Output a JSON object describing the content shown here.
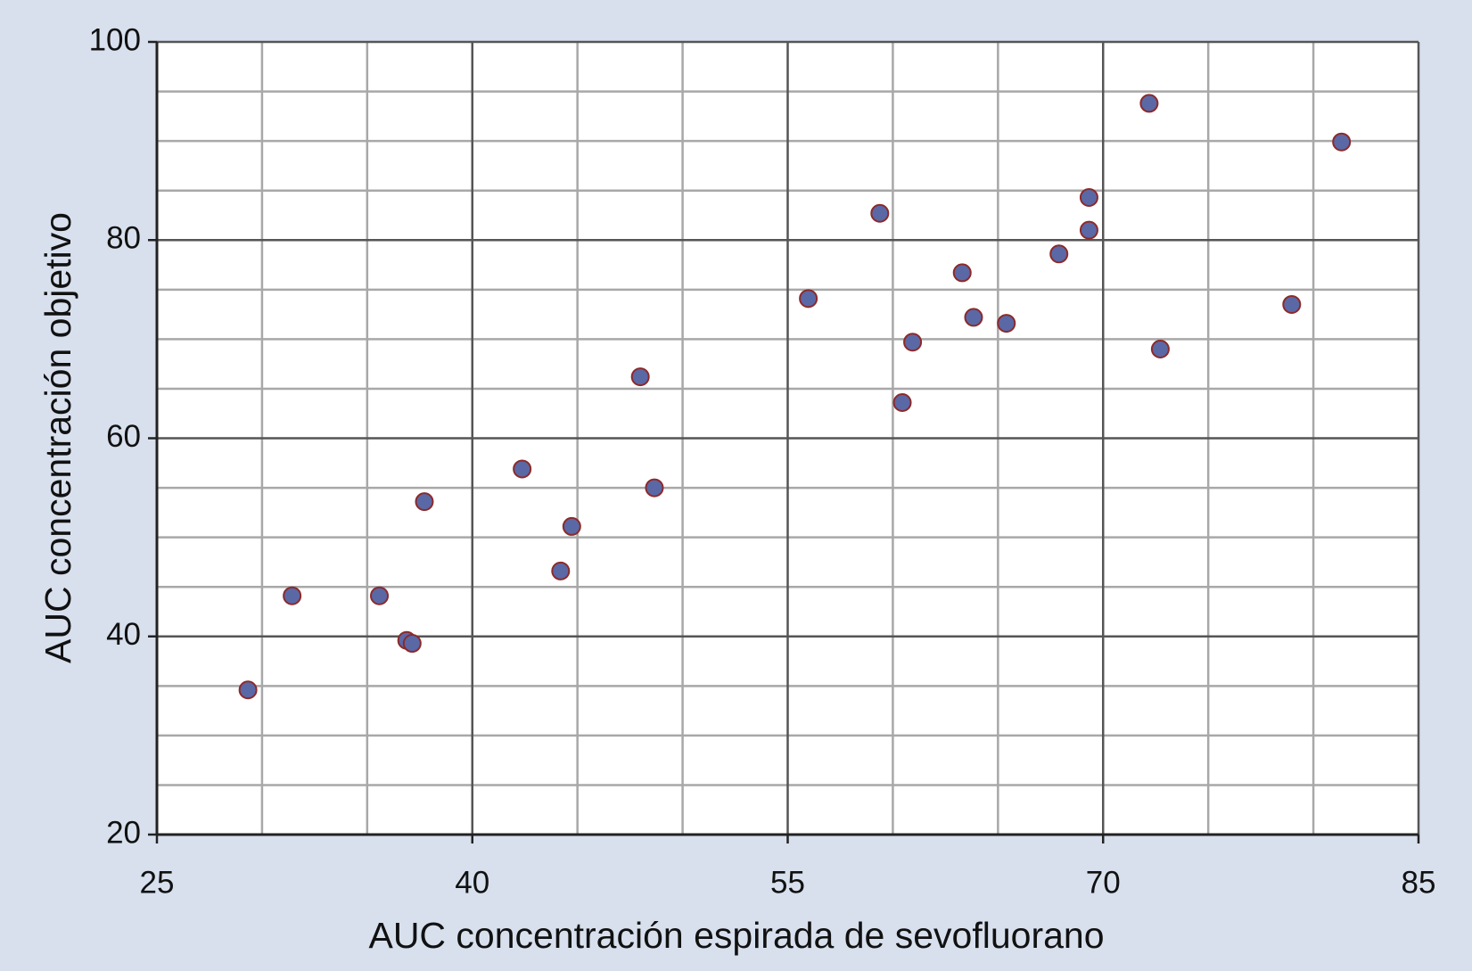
{
  "chart_data": {
    "type": "scatter",
    "x_label": "AUC concentración espirada de sevofluorano",
    "y_label": "AUC concentración objetivo",
    "x": [
      29.33,
      31.43,
      35.58,
      36.88,
      37.14,
      37.72,
      42.37,
      44.2,
      44.73,
      47.99,
      48.66,
      55.98,
      59.38,
      60.45,
      60.94,
      63.3,
      63.84,
      65.4,
      67.9,
      69.33,
      69.33,
      72.19,
      72.72,
      78.97,
      81.34
    ],
    "values": [
      34.6,
      44.1,
      44.1,
      39.6,
      39.3,
      53.6,
      56.9,
      46.6,
      51.1,
      66.2,
      55.0,
      74.1,
      82.7,
      63.6,
      69.7,
      76.7,
      72.2,
      71.6,
      78.6,
      84.3,
      81.0,
      93.8,
      69.0,
      73.5,
      89.9
    ],
    "color": "#5a68a6",
    "edge_color": "#8c2a2a",
    "xlim": [
      25,
      85
    ],
    "xticks": [
      25,
      40,
      55,
      70,
      85
    ],
    "ylim": [
      20,
      100
    ],
    "yticks": [
      20,
      40,
      60,
      80,
      100
    ],
    "grid": true
  }
}
